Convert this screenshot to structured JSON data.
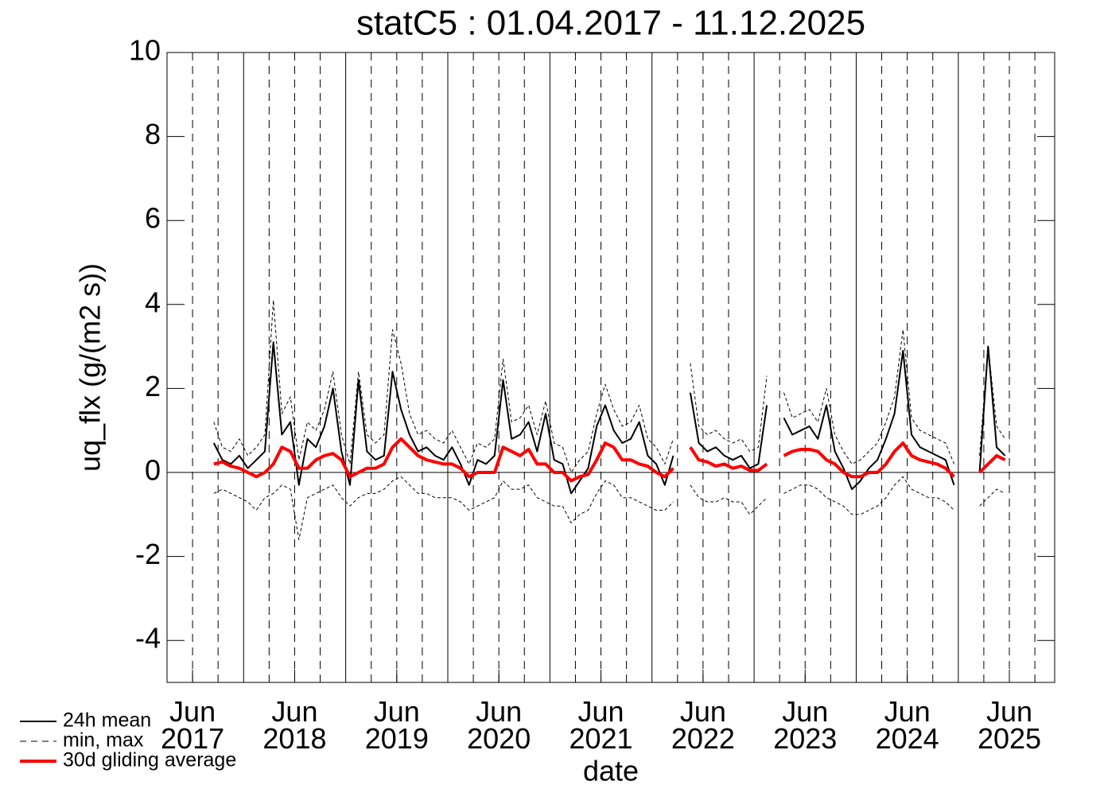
{
  "chart_data": {
    "type": "line",
    "title": "statC5 : 01.04.2017 - 11.12.2025",
    "x_label": "date",
    "y_label": "uq_flx (g/(m2 s))",
    "xlim": [
      "2017-04-01",
      "2025-12-11"
    ],
    "xticks": [
      {
        "value": "2017-07-01",
        "label": "Jun\n2017"
      },
      {
        "value": "2018-07-01",
        "label": "Jun\n2018"
      },
      {
        "value": "2019-07-01",
        "label": "Jun\n2019"
      },
      {
        "value": "2020-07-01",
        "label": "Jun\n2020"
      },
      {
        "value": "2021-07-01",
        "label": "Jun\n2021"
      },
      {
        "value": "2022-07-01",
        "label": "Jun\n2022"
      },
      {
        "value": "2023-07-01",
        "label": "Jun\n2023"
      },
      {
        "value": "2024-07-01",
        "label": "Jun\n2024"
      },
      {
        "value": "2025-07-01",
        "label": "Jun\n2025"
      }
    ],
    "year_lines": [
      "2018-01-01",
      "2019-01-01",
      "2020-01-01",
      "2021-01-01",
      "2022-01-01",
      "2023-01-01",
      "2024-01-01",
      "2025-01-01"
    ],
    "quarter_lines": [
      "2017-07-01",
      "2017-10-01",
      "2018-04-01",
      "2018-07-01",
      "2018-10-01",
      "2019-04-01",
      "2019-07-01",
      "2019-10-01",
      "2020-04-01",
      "2020-07-01",
      "2020-10-01",
      "2021-04-01",
      "2021-07-01",
      "2021-10-01",
      "2022-04-01",
      "2022-07-01",
      "2022-10-01",
      "2023-04-01",
      "2023-07-01",
      "2023-10-01",
      "2024-04-01",
      "2024-07-01",
      "2024-10-01",
      "2025-04-01",
      "2025-07-01",
      "2025-10-01"
    ],
    "ylim": [
      -5,
      10
    ],
    "yticks": [
      -4,
      -2,
      0,
      2,
      4,
      6,
      8,
      10
    ],
    "hline": 0,
    "legend": "bottom-left",
    "x": [
      "2017-09",
      "2017-10",
      "2017-11",
      "2017-12",
      "2018-01",
      "2018-02",
      "2018-03",
      "2018-04",
      "2018-05",
      "2018-06",
      "2018-07",
      "2018-08",
      "2018-09",
      "2018-10",
      "2018-11",
      "2018-12",
      "2019-01",
      "2019-02",
      "2019-03",
      "2019-04",
      "2019-05",
      "2019-06",
      "2019-07",
      "2019-08",
      "2019-09",
      "2019-10",
      "2019-11",
      "2019-12",
      "2020-01",
      "2020-02",
      "2020-03",
      "2020-04",
      "2020-05",
      "2020-06",
      "2020-07",
      "2020-08",
      "2020-09",
      "2020-10",
      "2020-11",
      "2020-12",
      "2021-01",
      "2021-02",
      "2021-03",
      "2021-04",
      "2021-05",
      "2021-06",
      "2021-07",
      "2021-08",
      "2021-09",
      "2021-10",
      "2021-11",
      "2021-12",
      "2022-01",
      "2022-02",
      "2022-03",
      "2022-04",
      "2022-05",
      "2022-06",
      "2022-07",
      "2022-08",
      "2022-09",
      "2022-10",
      "2022-11",
      "2022-12",
      "2023-01",
      "2023-02",
      "2023-03",
      "2023-04",
      "2023-05",
      "2023-06",
      "2023-07",
      "2023-08",
      "2023-09",
      "2023-10",
      "2023-11",
      "2023-12",
      "2024-01",
      "2024-02",
      "2024-03",
      "2024-04",
      "2024-05",
      "2024-06",
      "2024-07",
      "2024-08",
      "2024-09",
      "2024-10",
      "2024-11",
      "2024-12",
      "2025-01",
      "2025-02",
      "2025-03",
      "2025-04",
      "2025-05",
      "2025-06"
    ],
    "series": [
      {
        "name": "24h mean",
        "color": "#000000",
        "style": "solid",
        "width": 2,
        "values": [
          0.7,
          0.3,
          0.2,
          0.4,
          0.1,
          0.3,
          0.5,
          3.1,
          0.9,
          1.2,
          -0.3,
          0.8,
          0.6,
          1.1,
          2.0,
          0.5,
          -0.3,
          2.2,
          0.5,
          0.3,
          0.4,
          2.4,
          1.5,
          0.9,
          0.5,
          0.6,
          0.4,
          0.3,
          0.6,
          0.2,
          -0.3,
          0.3,
          0.2,
          0.4,
          2.2,
          0.8,
          0.9,
          1.2,
          0.5,
          1.4,
          0.3,
          0.2,
          -0.5,
          -0.2,
          0.1,
          1.1,
          1.6,
          1.0,
          0.7,
          0.8,
          1.2,
          0.4,
          0.2,
          -0.3,
          0.4,
          null,
          1.9,
          0.7,
          0.5,
          0.6,
          0.4,
          0.3,
          0.4,
          0.1,
          0.2,
          1.6,
          null,
          1.3,
          0.9,
          1.0,
          1.1,
          0.8,
          1.6,
          0.5,
          0.1,
          -0.4,
          -0.2,
          0.1,
          0.3,
          0.8,
          1.4,
          2.9,
          0.9,
          0.6,
          0.5,
          0.4,
          0.3,
          -0.3,
          null,
          null,
          0.0,
          3.0,
          0.6,
          0.4
        ]
      },
      {
        "name": "min, max",
        "color": "#000000",
        "style": "dashed",
        "width": 1,
        "low": [
          -0.5,
          -0.4,
          -0.5,
          -0.6,
          -0.7,
          -0.9,
          -0.6,
          -0.5,
          -0.3,
          -0.4,
          -1.6,
          -0.6,
          -0.5,
          -0.4,
          -0.3,
          -0.6,
          -0.8,
          -0.6,
          -0.5,
          -0.5,
          -0.4,
          -0.2,
          -0.1,
          -0.3,
          -0.5,
          -0.5,
          -0.6,
          -0.6,
          -0.6,
          -0.7,
          -0.9,
          -0.8,
          -0.7,
          -0.6,
          -0.2,
          -0.4,
          -0.4,
          -0.3,
          -0.6,
          -0.7,
          -0.8,
          -0.8,
          -1.2,
          -1.0,
          -0.9,
          -0.5,
          -0.2,
          -0.3,
          -0.6,
          -0.6,
          -0.7,
          -0.8,
          -0.9,
          -0.9,
          -0.7,
          null,
          -0.3,
          -0.6,
          -0.7,
          -0.7,
          -0.6,
          -0.7,
          -0.7,
          -1.0,
          -0.8,
          -0.6,
          null,
          -0.5,
          -0.4,
          -0.3,
          -0.3,
          -0.4,
          -0.6,
          -0.7,
          -0.8,
          -1.0,
          -1.0,
          -0.9,
          -0.8,
          -0.6,
          -0.3,
          -0.1,
          -0.4,
          -0.5,
          -0.6,
          -0.6,
          -0.7,
          -0.9,
          null,
          null,
          -0.8,
          -0.6,
          -0.4,
          -0.5
        ],
        "high": [
          1.2,
          0.6,
          0.5,
          0.8,
          0.4,
          0.6,
          0.9,
          4.1,
          1.4,
          1.8,
          0.3,
          1.2,
          1.0,
          1.5,
          2.4,
          0.9,
          0.2,
          2.4,
          0.9,
          0.7,
          0.9,
          3.4,
          2.6,
          1.4,
          0.9,
          1.0,
          0.8,
          0.7,
          1.0,
          0.6,
          0.2,
          0.7,
          0.6,
          0.8,
          2.7,
          1.2,
          1.3,
          1.6,
          0.9,
          1.7,
          0.7,
          0.6,
          0.0,
          0.3,
          0.5,
          1.4,
          2.1,
          1.5,
          1.1,
          1.2,
          1.6,
          0.8,
          0.6,
          0.2,
          0.8,
          null,
          2.6,
          1.1,
          0.9,
          1.0,
          0.8,
          0.7,
          0.8,
          0.5,
          0.6,
          2.3,
          null,
          1.9,
          1.3,
          1.4,
          1.5,
          1.2,
          2.0,
          0.9,
          0.5,
          0.2,
          0.3,
          0.5,
          0.7,
          1.2,
          1.8,
          3.4,
          1.3,
          1.0,
          0.9,
          0.8,
          0.7,
          0.2,
          null,
          null,
          0.4,
          3.0,
          1.1,
          0.8
        ]
      },
      {
        "name": "30d gliding average",
        "color": "#ff0000",
        "style": "solid",
        "width": 4,
        "values": [
          0.2,
          0.25,
          0.15,
          0.1,
          0.0,
          -0.1,
          0.0,
          0.2,
          0.6,
          0.5,
          0.1,
          0.1,
          0.3,
          0.4,
          0.45,
          0.3,
          -0.1,
          0.0,
          0.1,
          0.1,
          0.2,
          0.6,
          0.8,
          0.6,
          0.4,
          0.3,
          0.25,
          0.2,
          0.2,
          0.1,
          -0.1,
          0.0,
          0.0,
          0.0,
          0.6,
          0.5,
          0.4,
          0.55,
          0.2,
          0.2,
          0.0,
          0.0,
          -0.2,
          -0.1,
          -0.05,
          0.3,
          0.7,
          0.6,
          0.3,
          0.3,
          0.2,
          0.15,
          0.0,
          -0.1,
          0.1,
          null,
          0.6,
          0.3,
          0.25,
          0.15,
          0.2,
          0.1,
          0.15,
          0.05,
          0.05,
          0.2,
          null,
          0.4,
          0.5,
          0.55,
          0.55,
          0.5,
          0.3,
          0.2,
          0.0,
          -0.1,
          -0.1,
          0.0,
          0.0,
          0.2,
          0.5,
          0.7,
          0.4,
          0.3,
          0.25,
          0.2,
          0.1,
          -0.1,
          null,
          null,
          0.0,
          0.2,
          0.4,
          0.3
        ]
      }
    ]
  }
}
